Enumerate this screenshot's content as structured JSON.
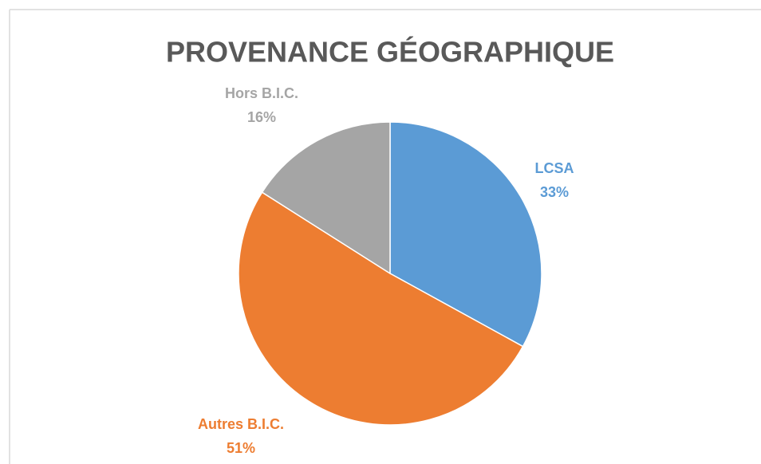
{
  "chart_data": {
    "type": "pie",
    "title": "PROVENANCE GÉOGRAPHIQUE",
    "categories": [
      "LCSA",
      "Autres B.I.C.",
      "Hors B.I.C."
    ],
    "values": [
      33,
      51,
      16
    ],
    "value_labels": [
      "33%",
      "51%",
      "16%"
    ],
    "colors": [
      "#5b9bd5",
      "#ed7d31",
      "#a5a5a5"
    ]
  }
}
